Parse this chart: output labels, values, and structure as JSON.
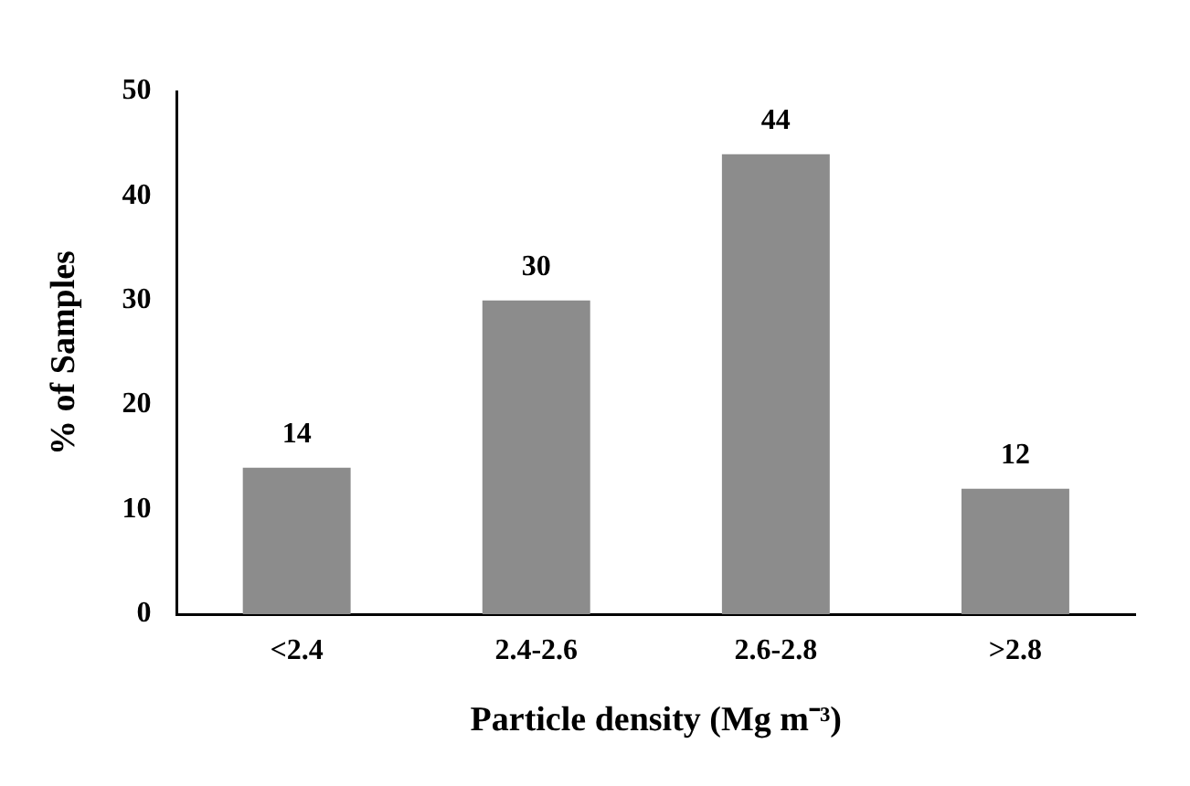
{
  "chart_data": {
    "type": "bar",
    "categories": [
      "<2.4",
      "2.4-2.6",
      "2.6-2.8",
      ">2.8"
    ],
    "values": [
      14,
      30,
      44,
      12
    ],
    "color": "#8c8c8c",
    "ylim": [
      0,
      50
    ],
    "yticks": [
      0,
      10,
      20,
      30,
      40,
      50
    ],
    "grid": false,
    "legend": false,
    "data_labels": true,
    "xlabel": "Particle density (Mg m⁻³)",
    "ylabel": "% of Samples"
  }
}
